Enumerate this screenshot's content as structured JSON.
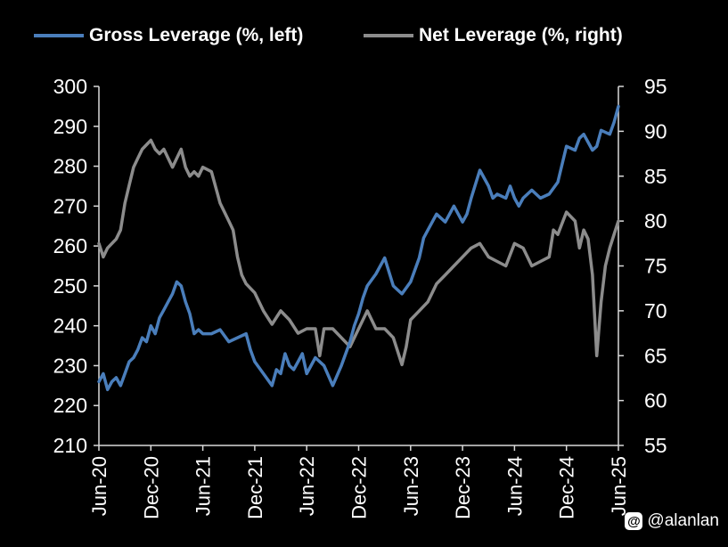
{
  "chart_data": {
    "type": "line",
    "title": "",
    "xlabel": "",
    "ylabel_left": "",
    "ylabel_right": "",
    "x_ticks": [
      "Jun-20",
      "Dec-20",
      "Jun-21",
      "Dec-21",
      "Jun-22",
      "Dec-22",
      "Jun-23",
      "Dec-23",
      "Jun-24",
      "Dec-24",
      "Jun-25"
    ],
    "y_left": {
      "min": 210,
      "max": 300,
      "ticks": [
        "210",
        "220",
        "230",
        "240",
        "250",
        "260",
        "270",
        "280",
        "290",
        "300"
      ]
    },
    "y_right": {
      "min": 55,
      "max": 95,
      "ticks": [
        "55",
        "60",
        "65",
        "70",
        "75",
        "80",
        "85",
        "90",
        "95"
      ]
    },
    "grid": false,
    "legend_position": "top",
    "x_unit": "months since Jun-20",
    "series": [
      {
        "name": "Gross Leverage (%, left)",
        "axis": "left",
        "color": "#4a7ebb",
        "x": [
          0,
          0.5,
          1,
          1.5,
          2,
          2.5,
          3,
          3.5,
          4,
          4.5,
          5,
          5.5,
          6,
          6.5,
          7,
          7.5,
          8,
          8.5,
          9,
          9.5,
          10,
          10.5,
          11,
          11.5,
          12,
          13,
          14,
          15,
          16,
          17,
          17.5,
          18,
          19,
          20,
          20.5,
          21,
          21.5,
          22,
          22.5,
          23,
          23.5,
          24,
          25,
          26,
          27,
          28,
          29,
          29.5,
          30,
          30.5,
          31,
          32,
          33,
          34,
          34.5,
          35,
          36,
          37,
          37.5,
          38,
          39,
          40,
          41,
          42,
          42.5,
          43,
          44,
          45,
          45.5,
          46,
          47,
          47.5,
          48,
          48.5,
          49,
          50,
          51,
          52,
          53,
          54,
          55,
          55.5,
          56,
          57,
          57.5,
          58,
          59,
          59.5,
          60
        ],
        "values": [
          226,
          228,
          224,
          226,
          227,
          225,
          228,
          231,
          232,
          234,
          237,
          236,
          240,
          238,
          242,
          244,
          246,
          248,
          251,
          250,
          246,
          243,
          238,
          239,
          238,
          238,
          239,
          236,
          237,
          238,
          234,
          231,
          228,
          225,
          229,
          228,
          233,
          230,
          229,
          231,
          233,
          228,
          232,
          230,
          225,
          230,
          236,
          240,
          243,
          247,
          250,
          253,
          257,
          250,
          249,
          248,
          251,
          257,
          262,
          264,
          268,
          266,
          270,
          266,
          268,
          272,
          279,
          275,
          272,
          273,
          272,
          275,
          272,
          270,
          272,
          274,
          272,
          273,
          276,
          285,
          284,
          287,
          288,
          284,
          285,
          289,
          288,
          291,
          295
        ]
      },
      {
        "name": "Net Leverage (%, right)",
        "axis": "right",
        "color": "#8c8c8c",
        "x": [
          0,
          0.5,
          1,
          1.5,
          2,
          2.5,
          3,
          3.5,
          4,
          4.5,
          5,
          5.5,
          6,
          6.5,
          7,
          7.5,
          8,
          8.5,
          9,
          9.5,
          10,
          10.5,
          11,
          11.5,
          12,
          13,
          14,
          15,
          15.5,
          16,
          16.5,
          17,
          18,
          19,
          20,
          21,
          22,
          23,
          24,
          25,
          25.5,
          26,
          27,
          28,
          29,
          30,
          31,
          32,
          33,
          34,
          35,
          35.5,
          36,
          37,
          38,
          39,
          40,
          41,
          42,
          43,
          44,
          45,
          46,
          47,
          48,
          49,
          50,
          51,
          52,
          52.5,
          53,
          54,
          55,
          55.5,
          56,
          56.5,
          57,
          57.5,
          58,
          58.5,
          59,
          59.5,
          60
        ],
        "values": [
          77.5,
          76,
          77,
          77.5,
          78,
          79,
          82,
          84,
          86,
          87,
          88,
          88.5,
          89,
          88,
          87.5,
          88,
          87,
          86,
          87,
          88,
          86,
          85,
          85.5,
          85,
          86,
          85.5,
          82,
          80,
          79,
          76,
          74,
          73,
          72,
          70,
          68.5,
          70,
          69,
          67.5,
          68,
          68,
          65,
          68,
          68,
          67,
          66,
          68,
          70,
          68,
          68,
          67,
          64,
          66,
          69,
          70,
          71,
          73,
          74,
          75,
          76,
          77,
          77.5,
          76,
          75.5,
          75,
          77.5,
          77,
          75,
          75.5,
          76,
          79,
          78.5,
          81,
          80,
          77,
          79,
          78,
          74,
          65,
          71,
          75,
          77,
          78.5,
          80
        ]
      }
    ]
  },
  "watermark": {
    "icon": "threads-icon",
    "icon_glyph": "@",
    "text": "@alanlan"
  }
}
